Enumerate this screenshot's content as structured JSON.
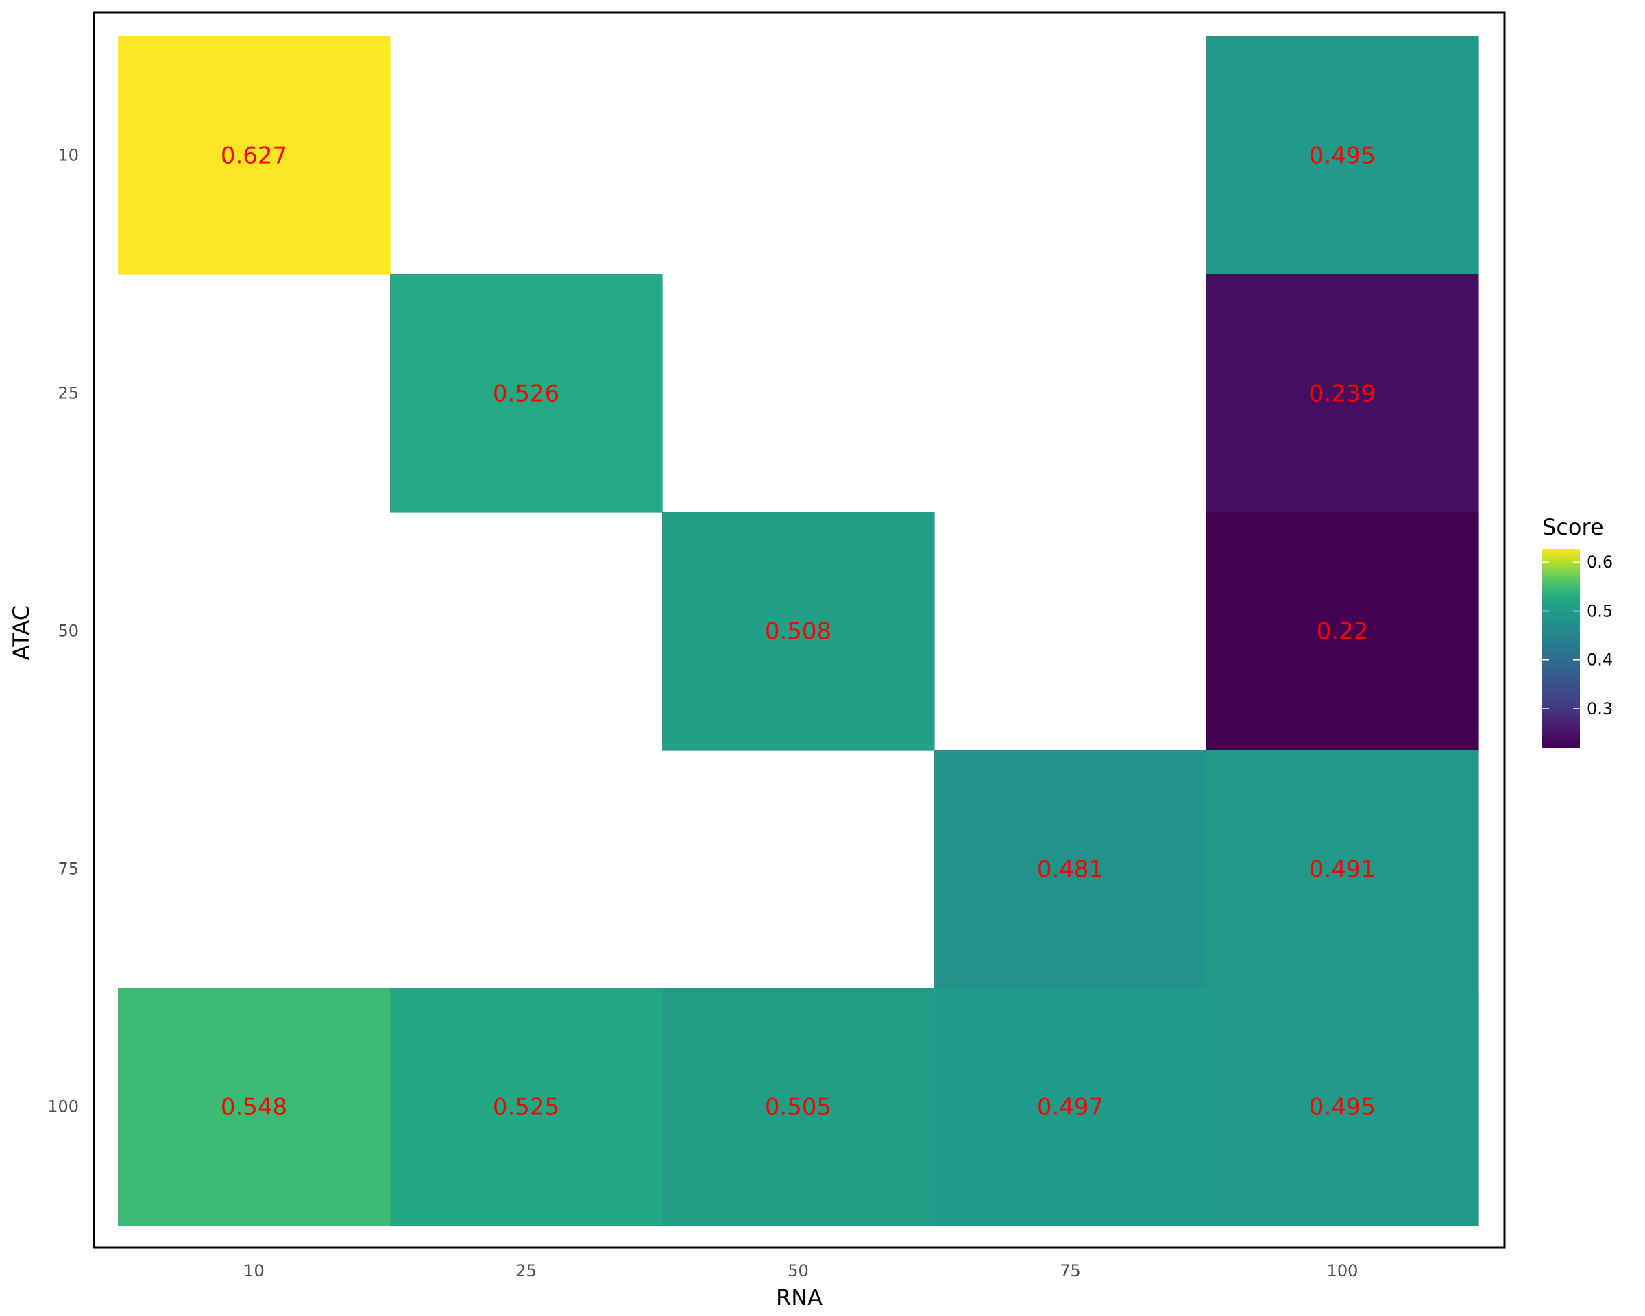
{
  "chart_data": {
    "type": "heatmap",
    "title": "",
    "xlabel": "RNA",
    "ylabel": "ATAC",
    "x_categories": [
      "10",
      "25",
      "50",
      "75",
      "100"
    ],
    "y_categories": [
      "10",
      "25",
      "50",
      "75",
      "100"
    ],
    "cells": [
      {
        "x": "10",
        "y": "10",
        "value": 0.627,
        "label": "0.627"
      },
      {
        "x": "100",
        "y": "10",
        "value": 0.495,
        "label": "0.495"
      },
      {
        "x": "25",
        "y": "25",
        "value": 0.526,
        "label": "0.526"
      },
      {
        "x": "100",
        "y": "25",
        "value": 0.239,
        "label": "0.239"
      },
      {
        "x": "50",
        "y": "50",
        "value": 0.508,
        "label": "0.508"
      },
      {
        "x": "100",
        "y": "50",
        "value": 0.22,
        "label": "0.22"
      },
      {
        "x": "75",
        "y": "75",
        "value": 0.481,
        "label": "0.481"
      },
      {
        "x": "100",
        "y": "75",
        "value": 0.491,
        "label": "0.491"
      },
      {
        "x": "10",
        "y": "100",
        "value": 0.548,
        "label": "0.548"
      },
      {
        "x": "25",
        "y": "100",
        "value": 0.525,
        "label": "0.525"
      },
      {
        "x": "50",
        "y": "100",
        "value": 0.505,
        "label": "0.505"
      },
      {
        "x": "75",
        "y": "100",
        "value": 0.497,
        "label": "0.497"
      },
      {
        "x": "100",
        "y": "100",
        "value": 0.495,
        "label": "0.495"
      }
    ],
    "label_color": "#ff0000",
    "colorscale": "viridis",
    "legend": {
      "title": "Score",
      "placement": "right",
      "min": 0.22,
      "max": 0.627,
      "ticks": [
        {
          "value": 0.3,
          "label": "0.3"
        },
        {
          "value": 0.4,
          "label": "0.4"
        },
        {
          "value": 0.5,
          "label": "0.5"
        },
        {
          "value": 0.6,
          "label": "0.6"
        }
      ]
    },
    "grid": false,
    "panel_border": true
  }
}
